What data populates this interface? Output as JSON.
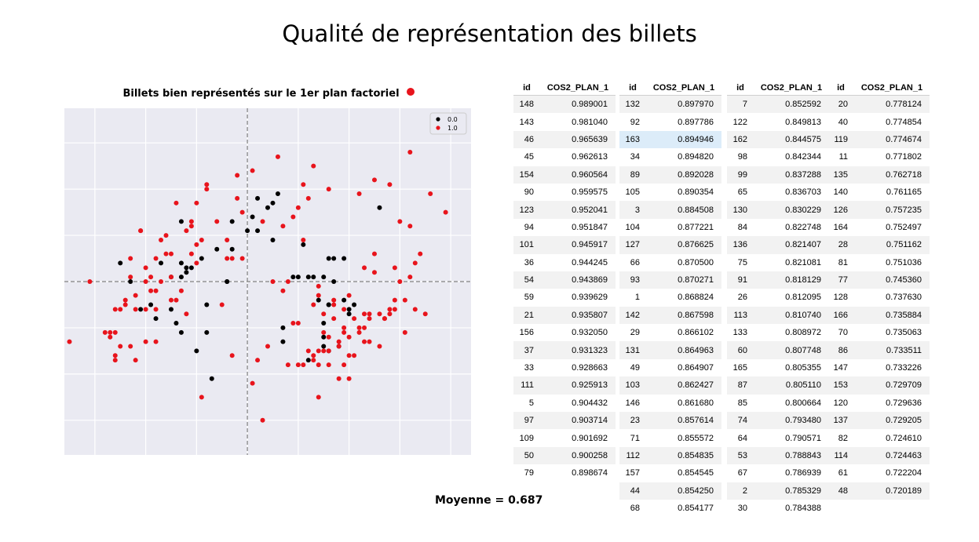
{
  "slide_title": "Qualité de représentation des billets",
  "mean_label": "Moyenne = 0.687",
  "chart_data": {
    "type": "scatter",
    "title": "Billets bien représentés sur le 1er plan factoriel",
    "xlabel": "",
    "ylabel": "",
    "xlim": [
      -3.6,
      4.4
    ],
    "ylim": [
      -3.75,
      3.75
    ],
    "xticks": [
      -3,
      -2,
      -1,
      0,
      1,
      2,
      3,
      4
    ],
    "yticks": [
      -3,
      -2,
      -1,
      0,
      1,
      2,
      3
    ],
    "grid": true,
    "legend_position": "top-right",
    "background": "#eaeaf2",
    "series": [
      {
        "name": "0.0",
        "color": "#000000",
        "points": [
          [
            -2.5,
            0.4
          ],
          [
            -1.9,
            -0.5
          ],
          [
            -1.7,
            0.4
          ],
          [
            -1.5,
            0.1
          ],
          [
            -1.3,
            0.1
          ],
          [
            -1.3,
            0.4
          ],
          [
            -1.2,
            0.3
          ],
          [
            -1.2,
            0.2
          ],
          [
            -1.1,
            0.3
          ],
          [
            -0.9,
            0.5
          ],
          [
            -0.8,
            -0.5
          ],
          [
            -0.6,
            0.7
          ],
          [
            -0.4,
            0.0
          ],
          [
            -0.3,
            1.3
          ],
          [
            -0.3,
            0.7
          ],
          [
            0.1,
            1.4
          ],
          [
            0.2,
            1.8
          ],
          [
            0.2,
            1.1
          ],
          [
            0.4,
            1.6
          ],
          [
            0.5,
            0.9
          ],
          [
            0.5,
            1.7
          ],
          [
            0.6,
            1.9
          ],
          [
            0.9,
            0.1
          ],
          [
            1.0,
            0.1
          ],
          [
            1.1,
            0.8
          ],
          [
            1.2,
            0.1
          ],
          [
            1.3,
            0.1
          ],
          [
            1.4,
            -0.4
          ],
          [
            1.5,
            0.1
          ],
          [
            1.6,
            -0.5
          ],
          [
            1.5,
            -0.9
          ],
          [
            1.5,
            -1.4
          ],
          [
            1.6,
            -0.5
          ],
          [
            1.6,
            0.5
          ],
          [
            1.7,
            0.5
          ],
          [
            1.9,
            -0.4
          ],
          [
            1.9,
            0.5
          ],
          [
            2.0,
            -0.6
          ],
          [
            2.1,
            -0.5
          ],
          [
            2.6,
            1.6
          ],
          [
            1.7,
            0.0
          ],
          [
            1.6,
            -1.5
          ],
          [
            1.8,
            -1.4
          ],
          [
            2.0,
            -0.7
          ],
          [
            0.7,
            -1.0
          ],
          [
            -1.0,
            -1.5
          ],
          [
            -1.4,
            -0.9
          ],
          [
            -0.7,
            -2.1
          ],
          [
            0.7,
            -1.3
          ],
          [
            -0.4,
            0.0
          ],
          [
            1.5,
            -1.2
          ],
          [
            1.2,
            -1.7
          ],
          [
            -0.8,
            -1.1
          ],
          [
            -1.3,
            -1.1
          ],
          [
            -1.3,
            1.3
          ],
          [
            0.0,
            1.1
          ],
          [
            -2.3,
            0.0
          ],
          [
            -2.1,
            -0.6
          ],
          [
            -1.8,
            -0.8
          ],
          [
            -1.5,
            -0.6
          ]
        ]
      },
      {
        "name": "1.0",
        "color": "#e8141c",
        "points": [
          [
            -3.5,
            -1.3
          ],
          [
            -3.1,
            0.0
          ],
          [
            -2.8,
            -1.1
          ],
          [
            -2.7,
            -1.2
          ],
          [
            -2.7,
            -1.1
          ],
          [
            -2.6,
            -1.1
          ],
          [
            -2.6,
            -1.7
          ],
          [
            -2.6,
            -1.6
          ],
          [
            -2.5,
            -0.6
          ],
          [
            -2.4,
            -0.5
          ],
          [
            -2.4,
            -0.4
          ],
          [
            -2.3,
            0.1
          ],
          [
            -2.3,
            0.5
          ],
          [
            -2.2,
            -0.3
          ],
          [
            -2.1,
            1.1
          ],
          [
            -2.1,
            1.1
          ],
          [
            -2.0,
            0.0
          ],
          [
            -2.0,
            -0.6
          ],
          [
            -2.0,
            0.3
          ],
          [
            -1.9,
            0.1
          ],
          [
            -1.9,
            -0.2
          ],
          [
            -1.8,
            0.5
          ],
          [
            -1.8,
            -0.6
          ],
          [
            -1.8,
            -1.3
          ],
          [
            -1.8,
            -0.2
          ],
          [
            -1.7,
            0.0
          ],
          [
            -1.7,
            0.9
          ],
          [
            -1.6,
            1.0
          ],
          [
            -1.6,
            0.6
          ],
          [
            -1.5,
            0.1
          ],
          [
            -1.5,
            0.6
          ],
          [
            -1.4,
            -0.4
          ],
          [
            -1.4,
            1.7
          ],
          [
            -1.3,
            -0.2
          ],
          [
            -1.2,
            -0.7
          ],
          [
            -1.2,
            1.1
          ],
          [
            -1.1,
            1.3
          ],
          [
            -1.1,
            1.2
          ],
          [
            -1.1,
            0.6
          ],
          [
            -1.0,
            0.4
          ],
          [
            -1.0,
            1.7
          ],
          [
            -1.0,
            0.8
          ],
          [
            -0.9,
            0.9
          ],
          [
            -0.8,
            2.0
          ],
          [
            -0.8,
            2.1
          ],
          [
            -0.6,
            1.3
          ],
          [
            -0.4,
            0.9
          ],
          [
            -0.4,
            0.5
          ],
          [
            -0.3,
            0.5
          ],
          [
            -0.2,
            1.8
          ],
          [
            -0.2,
            2.3
          ],
          [
            -0.1,
            0.5
          ],
          [
            -0.1,
            1.5
          ],
          [
            0.1,
            2.4
          ],
          [
            0.2,
            -1.7
          ],
          [
            0.3,
            -3.0
          ],
          [
            0.3,
            1.3
          ],
          [
            0.5,
            0.0
          ],
          [
            0.6,
            2.7
          ],
          [
            0.7,
            1.2
          ],
          [
            0.8,
            0.0
          ],
          [
            0.8,
            -1.8
          ],
          [
            0.9,
            -0.9
          ],
          [
            1.0,
            -1.8
          ],
          [
            1.0,
            1.6
          ],
          [
            1.1,
            0.9
          ],
          [
            1.2,
            1.8
          ],
          [
            1.3,
            -1.7
          ],
          [
            1.3,
            -1.6
          ],
          [
            1.4,
            -1.8
          ],
          [
            1.4,
            -2.5
          ],
          [
            1.4,
            -0.1
          ],
          [
            1.4,
            -0.3
          ],
          [
            1.5,
            -1.1
          ],
          [
            1.5,
            -0.7
          ],
          [
            1.6,
            -1.5
          ],
          [
            1.6,
            -1.2
          ],
          [
            1.7,
            -0.4
          ],
          [
            1.7,
            -0.5
          ],
          [
            1.7,
            -0.8
          ],
          [
            1.8,
            -1.3
          ],
          [
            1.8,
            -1.4
          ],
          [
            1.9,
            -0.6
          ],
          [
            1.9,
            -1.0
          ],
          [
            1.9,
            -1.1
          ],
          [
            2.0,
            -1.6
          ],
          [
            2.0,
            -2.1
          ],
          [
            2.0,
            -1.2
          ],
          [
            2.1,
            -0.8
          ],
          [
            2.2,
            -1.0
          ],
          [
            2.3,
            -0.7
          ],
          [
            2.3,
            0.3
          ],
          [
            2.3,
            -1.3
          ],
          [
            2.3,
            -1.0
          ],
          [
            2.4,
            -0.7
          ],
          [
            2.4,
            -1.3
          ],
          [
            2.4,
            -0.8
          ],
          [
            2.5,
            0.2
          ],
          [
            2.5,
            0.6
          ],
          [
            2.6,
            -0.7
          ],
          [
            2.7,
            -0.8
          ],
          [
            2.8,
            -0.7
          ],
          [
            2.9,
            -0.4
          ],
          [
            2.9,
            0.3
          ],
          [
            2.9,
            -0.6
          ],
          [
            3.0,
            1.3
          ],
          [
            3.0,
            0.0
          ],
          [
            3.1,
            -0.4
          ],
          [
            3.1,
            -1.1
          ],
          [
            3.2,
            0.1
          ],
          [
            3.2,
            1.2
          ],
          [
            3.3,
            0.4
          ],
          [
            3.3,
            -0.6
          ],
          [
            3.4,
            0.6
          ],
          [
            3.5,
            -0.7
          ],
          [
            3.6,
            1.9
          ],
          [
            3.9,
            1.5
          ],
          [
            2.7,
            -0.8
          ],
          [
            2.8,
            -0.6
          ],
          [
            2.6,
            -1.4
          ],
          [
            2.2,
            -1.1
          ],
          [
            2.1,
            -1.6
          ],
          [
            2.0,
            -0.3
          ],
          [
            1.9,
            -1.8
          ],
          [
            1.8,
            -2.1
          ],
          [
            1.6,
            -1.8
          ],
          [
            1.5,
            -1.5
          ],
          [
            1.4,
            -1.5
          ],
          [
            1.3,
            -0.5
          ],
          [
            1.2,
            -1.5
          ],
          [
            1.1,
            -1.8
          ],
          [
            1.0,
            -0.9
          ],
          [
            -2.6,
            -0.6
          ],
          [
            -2.3,
            -1.4
          ],
          [
            -2.2,
            -1.7
          ],
          [
            -2.0,
            -1.3
          ],
          [
            -2.2,
            -0.6
          ],
          [
            -2.5,
            -1.4
          ],
          [
            -1.5,
            -0.4
          ],
          [
            -0.9,
            -2.5
          ],
          [
            -0.5,
            -0.5
          ],
          [
            -0.3,
            -1.6
          ],
          [
            0.1,
            -2.2
          ],
          [
            0.4,
            -1.4
          ],
          [
            0.7,
            -0.2
          ],
          [
            0.9,
            1.4
          ],
          [
            1.1,
            2.1
          ],
          [
            1.3,
            2.5
          ],
          [
            1.6,
            2.0
          ],
          [
            2.2,
            1.9
          ],
          [
            2.5,
            2.2
          ],
          [
            2.8,
            2.1
          ],
          [
            3.2,
            2.8
          ]
        ]
      }
    ]
  },
  "tables": [
    {
      "headers": [
        "id",
        "COS2_PLAN_1"
      ],
      "rows": [
        [
          "148",
          "0.989001"
        ],
        [
          "143",
          "0.981040"
        ],
        [
          "46",
          "0.965639"
        ],
        [
          "45",
          "0.962613"
        ],
        [
          "154",
          "0.960564"
        ],
        [
          "90",
          "0.959575"
        ],
        [
          "123",
          "0.952041"
        ],
        [
          "94",
          "0.951847"
        ],
        [
          "101",
          "0.945917"
        ],
        [
          "36",
          "0.944245"
        ],
        [
          "54",
          "0.943869"
        ],
        [
          "59",
          "0.939629"
        ],
        [
          "21",
          "0.935807"
        ],
        [
          "156",
          "0.932050"
        ],
        [
          "37",
          "0.931323"
        ],
        [
          "33",
          "0.928663"
        ],
        [
          "111",
          "0.925913"
        ],
        [
          "5",
          "0.904432"
        ],
        [
          "97",
          "0.903714"
        ],
        [
          "109",
          "0.901692"
        ],
        [
          "50",
          "0.900258"
        ],
        [
          "79",
          "0.898674"
        ]
      ]
    },
    {
      "headers": [
        "id",
        "COS2_PLAN_1"
      ],
      "rows": [
        [
          "132",
          "0.897970"
        ],
        [
          "92",
          "0.897786"
        ],
        [
          "163",
          "0.894946"
        ],
        [
          "34",
          "0.894820"
        ],
        [
          "89",
          "0.892028"
        ],
        [
          "105",
          "0.890354"
        ],
        [
          "3",
          "0.884508"
        ],
        [
          "104",
          "0.877221"
        ],
        [
          "127",
          "0.876625"
        ],
        [
          "66",
          "0.870500"
        ],
        [
          "93",
          "0.870271"
        ],
        [
          "1",
          "0.868824"
        ],
        [
          "142",
          "0.867598"
        ],
        [
          "29",
          "0.866102"
        ],
        [
          "131",
          "0.864963"
        ],
        [
          "49",
          "0.864907"
        ],
        [
          "103",
          "0.862427"
        ],
        [
          "146",
          "0.861680"
        ],
        [
          "23",
          "0.857614"
        ],
        [
          "71",
          "0.855572"
        ],
        [
          "112",
          "0.854835"
        ],
        [
          "157",
          "0.854545"
        ],
        [
          "44",
          "0.854250"
        ],
        [
          "68",
          "0.854177"
        ]
      ],
      "highlighted_row": 2
    },
    {
      "headers": [
        "id",
        "COS2_PLAN_1"
      ],
      "rows": [
        [
          "7",
          "0.852592"
        ],
        [
          "122",
          "0.849813"
        ],
        [
          "162",
          "0.844575"
        ],
        [
          "98",
          "0.842344"
        ],
        [
          "99",
          "0.837288"
        ],
        [
          "65",
          "0.836703"
        ],
        [
          "130",
          "0.830229"
        ],
        [
          "84",
          "0.822748"
        ],
        [
          "136",
          "0.821407"
        ],
        [
          "75",
          "0.821081"
        ],
        [
          "91",
          "0.818129"
        ],
        [
          "26",
          "0.812095"
        ],
        [
          "113",
          "0.810740"
        ],
        [
          "133",
          "0.808972"
        ],
        [
          "60",
          "0.807748"
        ],
        [
          "165",
          "0.805355"
        ],
        [
          "87",
          "0.805110"
        ],
        [
          "85",
          "0.800664"
        ],
        [
          "74",
          "0.793480"
        ],
        [
          "64",
          "0.790571"
        ],
        [
          "53",
          "0.788843"
        ],
        [
          "67",
          "0.786939"
        ],
        [
          "2",
          "0.785329"
        ],
        [
          "30",
          "0.784388"
        ]
      ]
    },
    {
      "headers": [
        "id",
        "COS2_PLAN_1"
      ],
      "rows": [
        [
          "20",
          "0.778124"
        ],
        [
          "40",
          "0.774854"
        ],
        [
          "119",
          "0.774674"
        ],
        [
          "11",
          "0.771802"
        ],
        [
          "135",
          "0.762718"
        ],
        [
          "140",
          "0.761165"
        ],
        [
          "126",
          "0.757235"
        ],
        [
          "164",
          "0.752497"
        ],
        [
          "28",
          "0.751162"
        ],
        [
          "81",
          "0.751036"
        ],
        [
          "77",
          "0.745360"
        ],
        [
          "128",
          "0.737630"
        ],
        [
          "166",
          "0.735884"
        ],
        [
          "70",
          "0.735063"
        ],
        [
          "86",
          "0.733511"
        ],
        [
          "147",
          "0.733226"
        ],
        [
          "153",
          "0.729709"
        ],
        [
          "120",
          "0.729636"
        ],
        [
          "137",
          "0.729205"
        ],
        [
          "82",
          "0.724610"
        ],
        [
          "114",
          "0.724463"
        ],
        [
          "61",
          "0.722204"
        ],
        [
          "48",
          "0.720189"
        ]
      ]
    }
  ]
}
